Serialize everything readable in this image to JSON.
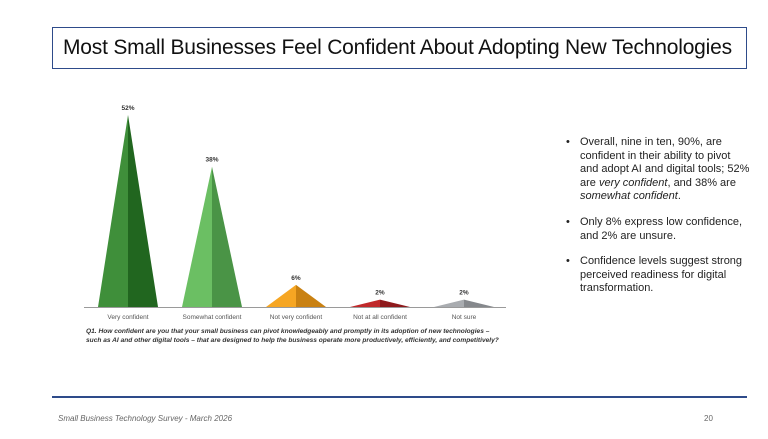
{
  "title": "Most Small Businesses Feel Confident About Adopting New Technologies",
  "question": "Q1. How confident are you that your small business can pivot knowledgeably and promptly in its adoption of new technologies – such as AI and other digital tools – that are designed to help the business operate more productively, efficiently, and competitively?",
  "bullets": [
    [
      "Overall, nine in ten, 90%, are confident in their ability to pivot and adopt AI and digital tools; 52% are ",
      {
        "i": "very confident"
      },
      ", and 38% are ",
      {
        "i": "somewhat confident"
      },
      "."
    ],
    [
      "Only 8% express low confidence, and 2% are unsure."
    ],
    [
      "Confidence levels suggest strong perceived readiness for digital transformation."
    ]
  ],
  "footer": {
    "left": "Small Business Technology Survey - March 2026",
    "page": "20"
  },
  "chart_data": {
    "type": "bar",
    "categories": [
      "Very confident",
      "Somewhat confident",
      "Not very confident",
      "Not at all confident",
      "Not sure"
    ],
    "values": [
      52,
      38,
      6,
      2,
      2
    ],
    "value_labels": [
      "52%",
      "38%",
      "6%",
      "2%",
      "2%"
    ],
    "colors": [
      [
        "#3f8f3a",
        "#21661f"
      ],
      [
        "#6bbf63",
        "#4a9446"
      ],
      [
        "#f6a623",
        "#c98112"
      ],
      [
        "#c0292b",
        "#8e1a1c"
      ],
      [
        "#a9acb0",
        "#85888c"
      ]
    ],
    "ylim": [
      0,
      52
    ],
    "grid": false,
    "legend": "none"
  }
}
